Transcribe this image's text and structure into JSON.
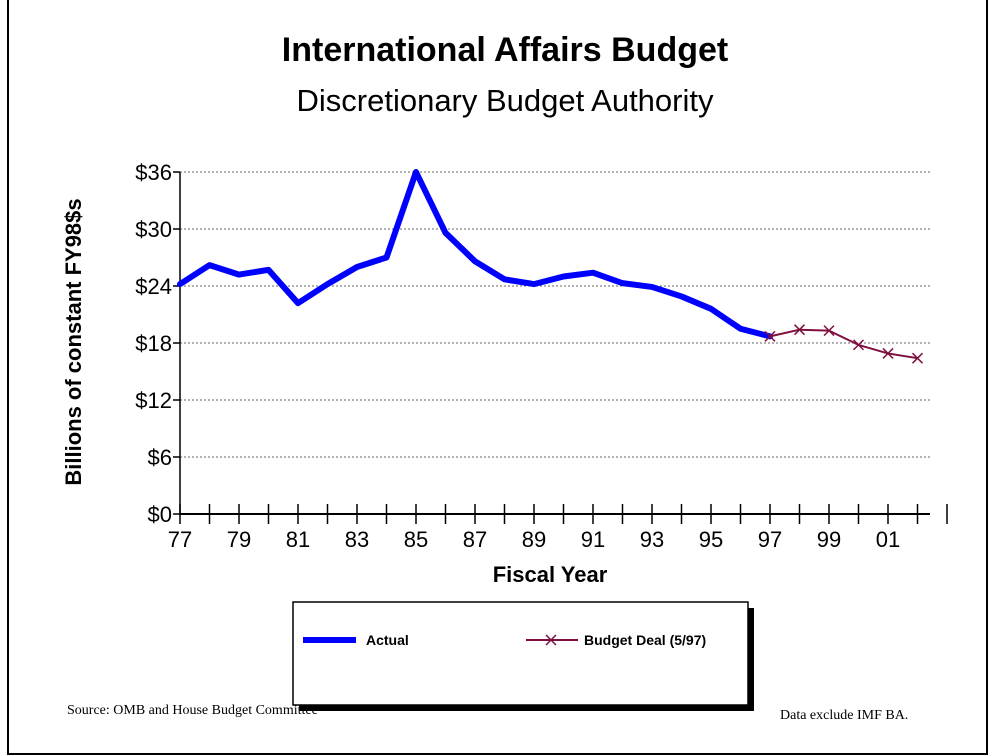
{
  "chart_data": {
    "type": "line",
    "title": "International Affairs Budget",
    "subtitle": "Discretionary Budget Authority",
    "xlabel": "Fiscal Year",
    "ylabel": "Billions of constant FY98$s",
    "ylim": [
      0,
      36
    ],
    "xlim": [
      1977,
      2002
    ],
    "yticks": [
      "$0",
      "$6",
      "$12",
      "$18",
      "$24",
      "$30",
      "$36"
    ],
    "xtick_labels": [
      "77",
      "79",
      "81",
      "83",
      "85",
      "87",
      "89",
      "91",
      "93",
      "95",
      "97",
      "99",
      "01"
    ],
    "grid": "horizontal dotted",
    "legend_placement": "bottom",
    "series": [
      {
        "name": "Actual",
        "color": "#0000ff",
        "x": [
          1977,
          1978,
          1979,
          1980,
          1981,
          1982,
          1983,
          1984,
          1985,
          1986,
          1987,
          1988,
          1989,
          1990,
          1991,
          1992,
          1993,
          1994,
          1995,
          1996,
          1997
        ],
        "values": [
          24.2,
          26.2,
          25.2,
          25.7,
          22.2,
          24.2,
          26.0,
          27.0,
          36.0,
          29.6,
          26.6,
          24.7,
          24.2,
          25.0,
          25.4,
          24.3,
          23.9,
          22.9,
          21.6,
          19.5,
          18.7
        ]
      },
      {
        "name": "Budget Deal (5/97)",
        "color": "#7f0f3f",
        "x": [
          1997,
          1998,
          1999,
          2000,
          2001,
          2002
        ],
        "values": [
          18.7,
          19.4,
          19.3,
          17.8,
          16.9,
          16.4
        ]
      }
    ]
  },
  "footer": {
    "source": "Source: OMB and House Budget Committee",
    "note": "Data exclude IMF BA."
  }
}
